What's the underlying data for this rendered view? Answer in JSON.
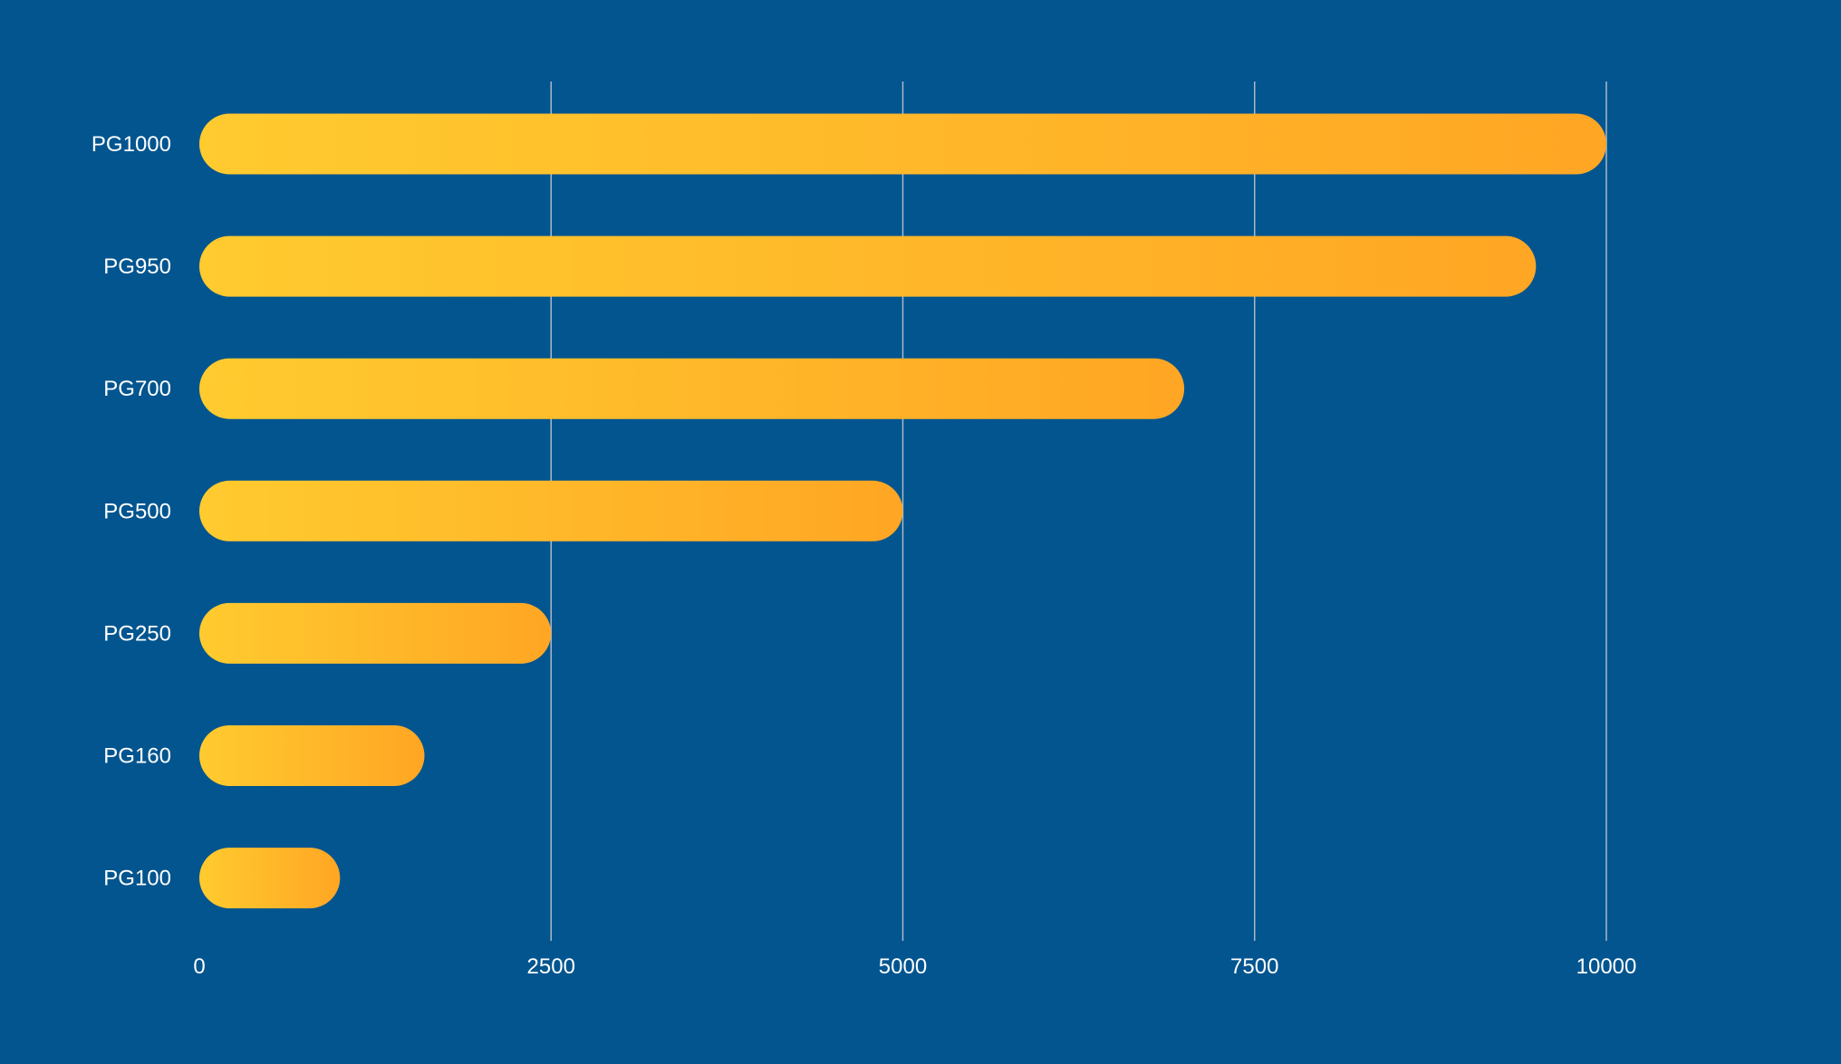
{
  "chart_data": {
    "type": "bar",
    "orientation": "horizontal",
    "title": "",
    "xlabel": "",
    "ylabel": "",
    "categories": [
      "PG1000",
      "PG950",
      "PG700",
      "PG500",
      "PG250",
      "PG160",
      "PG100"
    ],
    "values": [
      10000,
      9500,
      7000,
      5000,
      2500,
      1600,
      1000
    ],
    "xlim": [
      0,
      10000
    ],
    "xticks": [
      "0",
      "2500",
      "5000",
      "7500",
      "10000"
    ],
    "xtick_values": [
      0,
      2500,
      5000,
      7500,
      10000
    ],
    "grid": "vertical",
    "colors": {
      "background": "#02558f",
      "bar_start": "#ffcb2f",
      "bar_end": "#ffa624",
      "grid": "#a9b9c9",
      "text": "#ffffff"
    }
  }
}
